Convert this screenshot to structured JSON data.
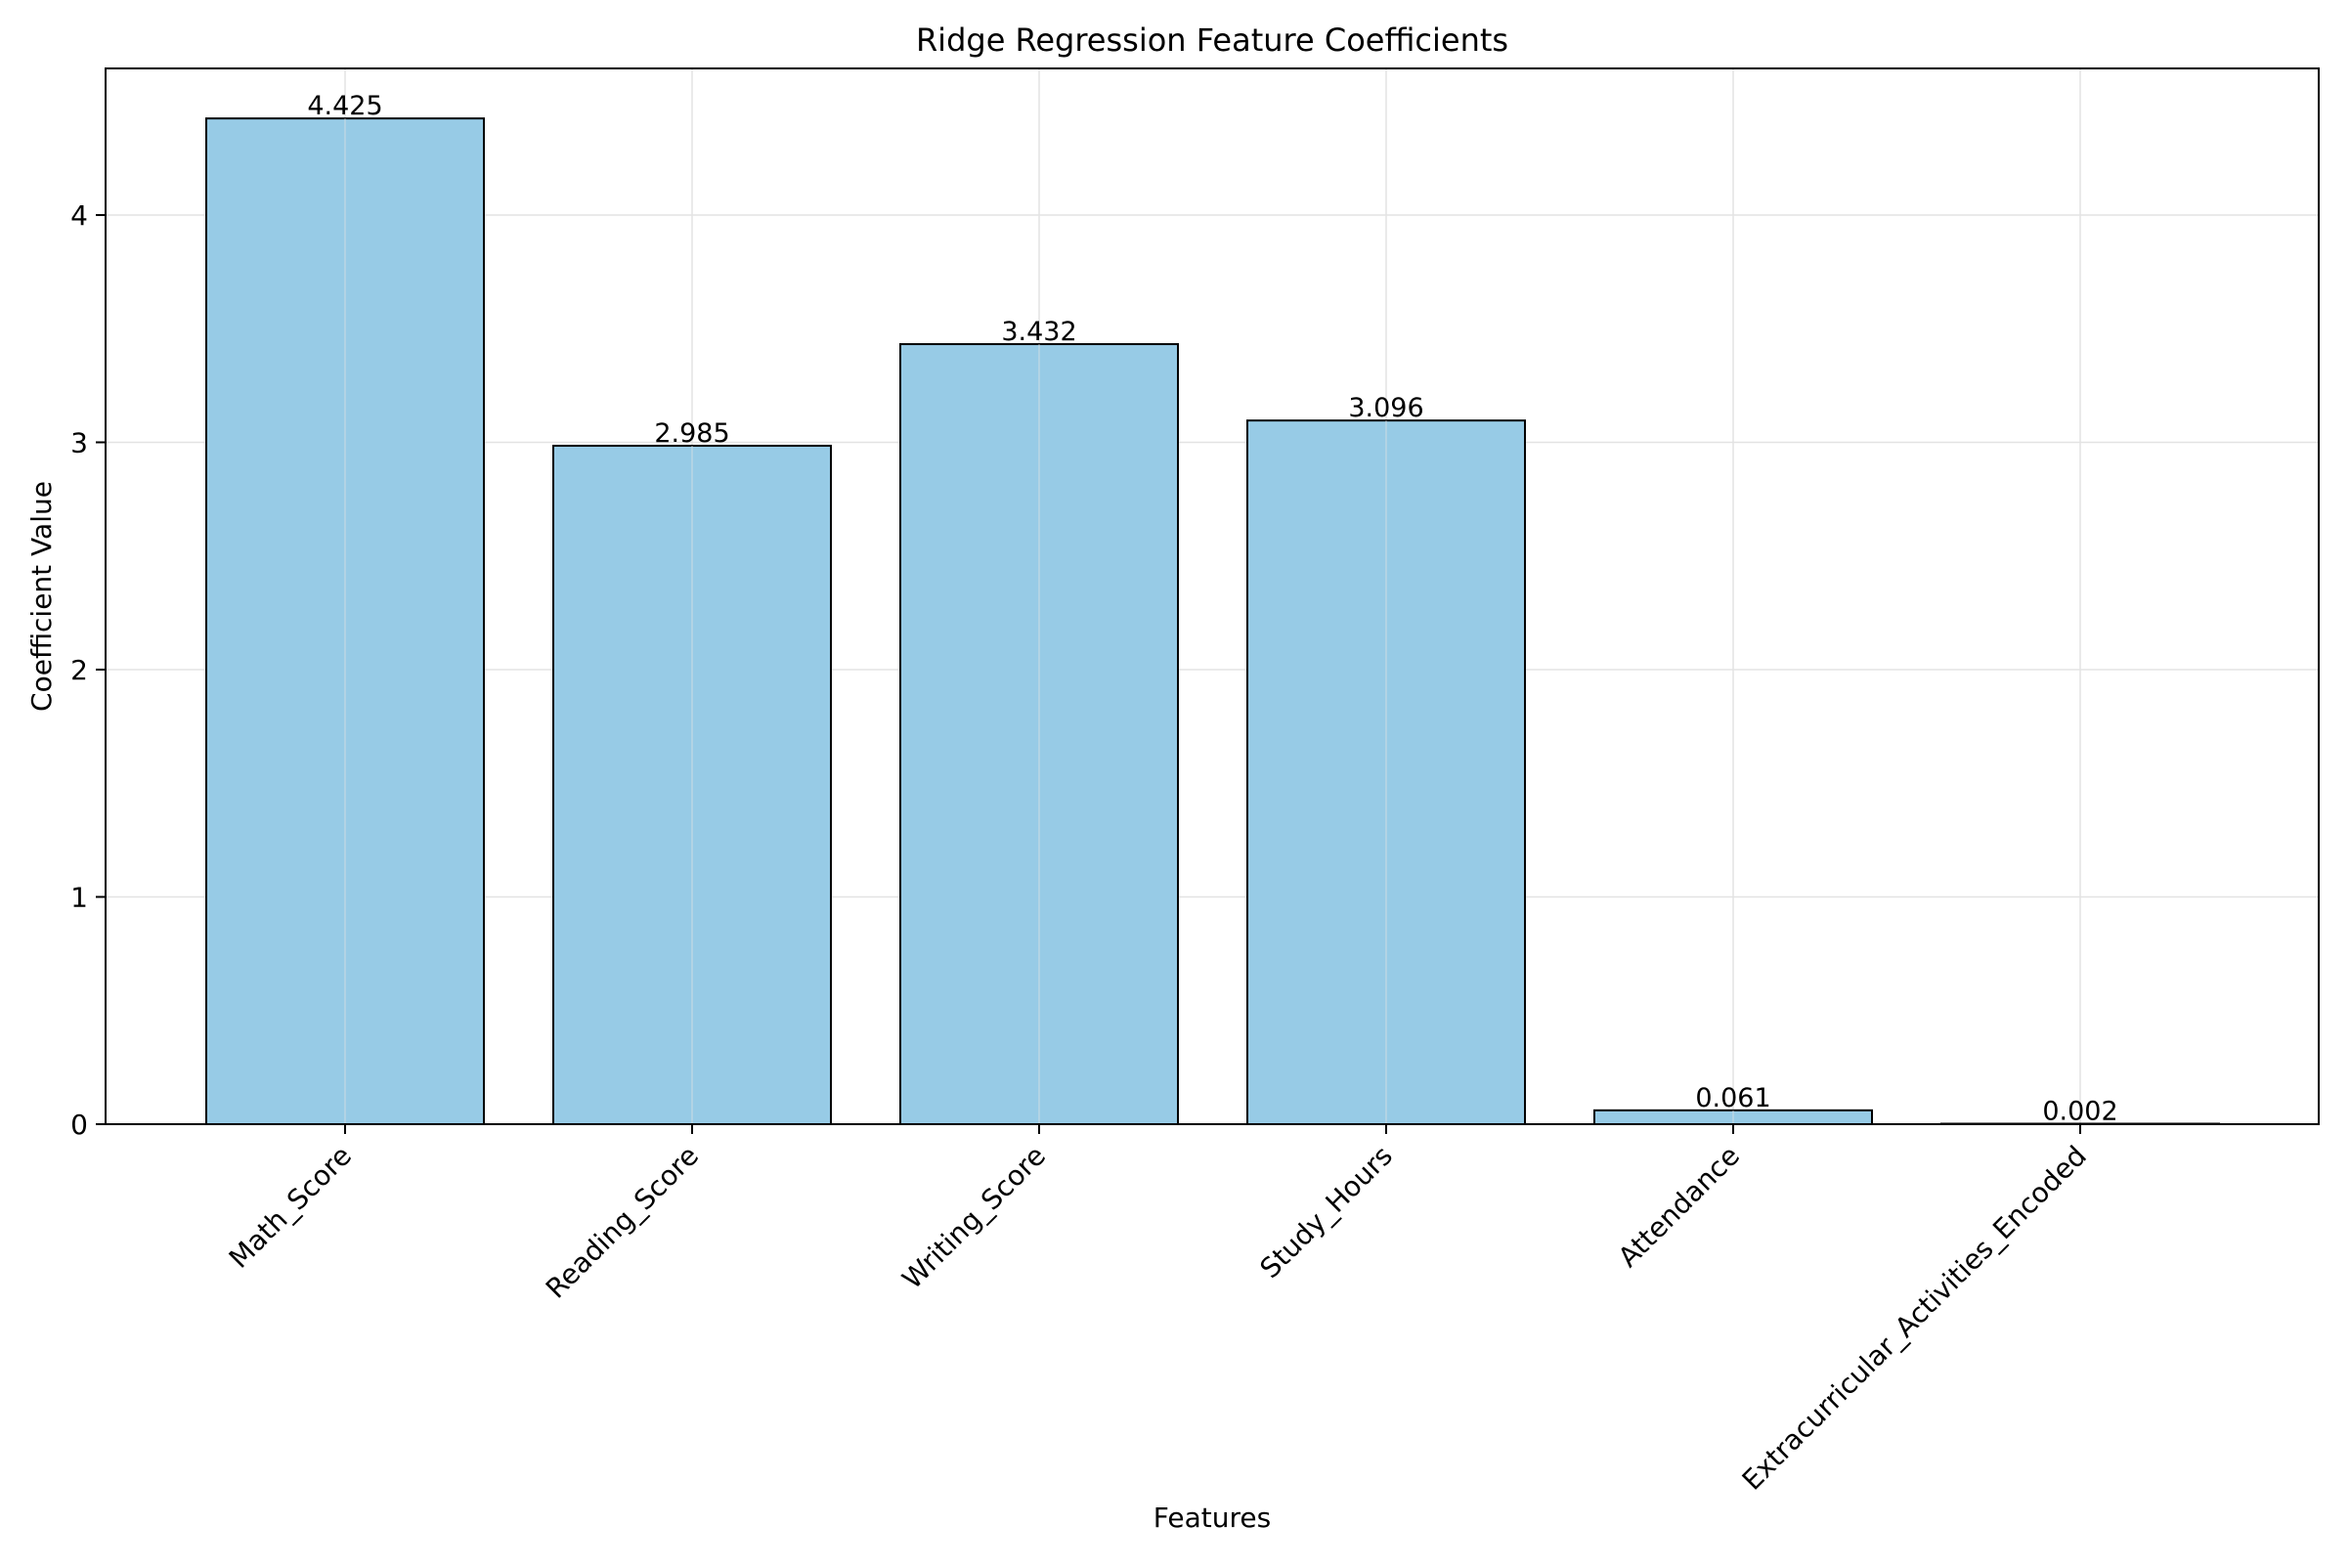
{
  "chart_data": {
    "type": "bar",
    "title": "Ridge Regression Feature Coefficients",
    "xlabel": "Features",
    "ylabel": "Coefficient Value",
    "categories": [
      "Math_Score",
      "Reading_Score",
      "Writing_Score",
      "Study_Hours",
      "Attendance",
      "Extracurricular_Activities_Encoded"
    ],
    "values": [
      4.425,
      2.985,
      3.432,
      3.096,
      0.061,
      0.002
    ],
    "value_labels": [
      "4.425",
      "2.985",
      "3.432",
      "3.096",
      "0.061",
      "0.002"
    ],
    "ylim": [
      0,
      4.645
    ],
    "yticks": [
      0,
      1,
      2,
      3,
      4
    ],
    "grid": true,
    "colors": {
      "bar_fill": "#97cbe6",
      "bar_edge": "#000000",
      "grid": "#e3e3e3",
      "axis": "#000000",
      "background": "#ffffff"
    }
  }
}
